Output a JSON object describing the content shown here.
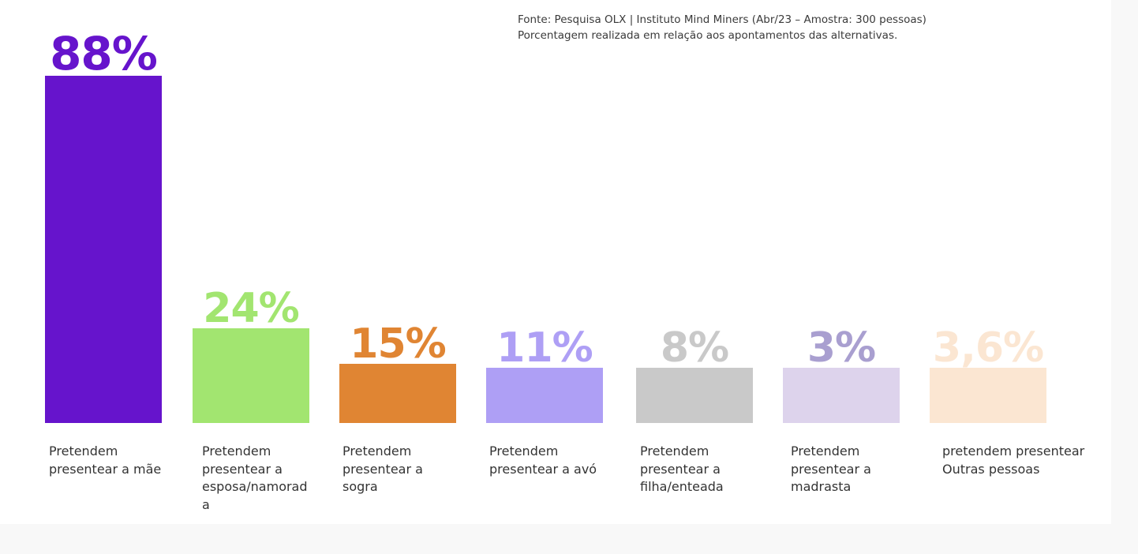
{
  "source": {
    "line1": "Fonte: Pesquisa OLX | Instituto Mind Miners (Abr/23 – Amostra: 300 pessoas)",
    "line2": "Porcentagem realizada em relação aos apontamentos das alternativas."
  },
  "chart_data": {
    "type": "bar",
    "title": "",
    "xlabel": "",
    "ylabel": "",
    "grid": false,
    "legend": "none",
    "categories": [
      "Pretendem presentear a mãe",
      "Pretendem presentear a esposa/namorada",
      "Pretendem presentear a sogra",
      "Pretendem presentear a avó",
      "Pretendem presentear a filha/enteada",
      "Pretendem presentear a madrasta",
      "pretendem presentear Outras pessoas"
    ],
    "values": [
      88,
      24,
      15,
      11,
      8,
      3,
      3.6
    ],
    "value_labels": [
      "88%",
      "24%",
      "15%",
      "11%",
      "8%",
      "3%",
      "3,6%"
    ],
    "bar_colors": [
      "#6614cc",
      "#a2e570",
      "#e08533",
      "#ae9ff5",
      "#c9c9c9",
      "#ddd3ec",
      "#fbe6d2"
    ],
    "label_colors": [
      "#6614cc",
      "#a2e570",
      "#e08533",
      "#ae9ff5",
      "#c9c9c9",
      "#a99fd0",
      "#fbe6d2"
    ]
  }
}
